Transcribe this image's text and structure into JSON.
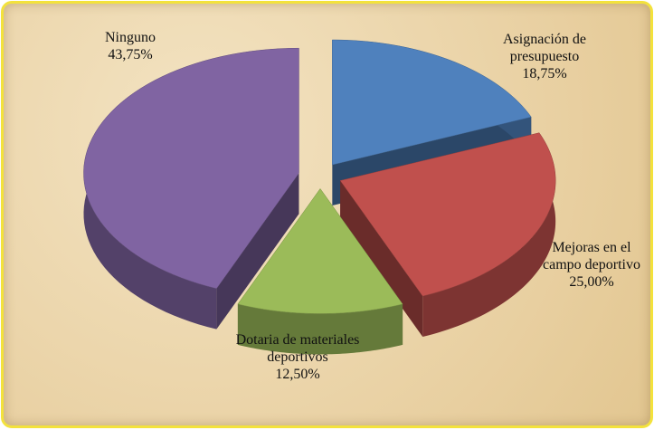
{
  "chart_data": {
    "type": "pie",
    "categories": [
      "Asignación de presupuesto",
      "Mejoras en el campo deportivo",
      "Dotaria de materiales deportivos",
      "Ninguno"
    ],
    "values": [
      18.75,
      25.0,
      12.5,
      43.75
    ],
    "value_labels": [
      "18,75%",
      "25,00%",
      "12,50%",
      "43,75%"
    ],
    "colors": [
      "#4f81bd",
      "#c0504d",
      "#9bbb59",
      "#8064a2"
    ],
    "three_d": true,
    "exploded": true
  }
}
